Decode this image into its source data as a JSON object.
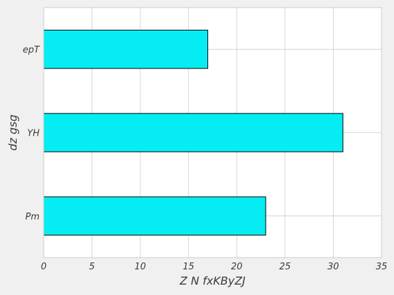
{
  "chart_data": {
    "type": "bar",
    "orientation": "horizontal",
    "title": "",
    "xlabel": "Z N fxKByZJ",
    "ylabel": "dz gsg",
    "categories": [
      "Pm",
      "YH",
      "epT"
    ],
    "values": [
      23,
      31,
      17
    ],
    "xlim": [
      0,
      35
    ],
    "xticks": [
      0,
      5,
      10,
      15,
      20,
      25,
      30,
      35
    ],
    "grid": true,
    "legend": "none",
    "colors": {
      "bar_fill": "#05edf2",
      "bar_edge": "#000000",
      "grid": "#cccccc",
      "plot_background": "#ffffff",
      "figure_background": "#f0f0f0"
    }
  }
}
